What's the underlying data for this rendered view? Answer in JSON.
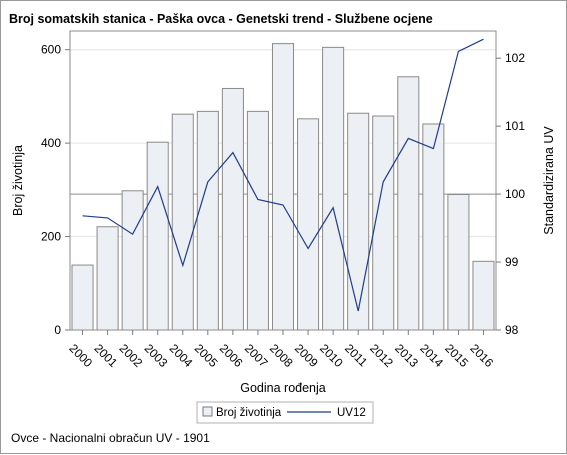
{
  "chart_data": {
    "type": "bar",
    "title": "Broj somatskih stanica - Paška ovca - Genetski trend - Službene ocjene",
    "xlabel": "Godina rođenja",
    "ylabel": "Broj životinja",
    "y2label": "Standardizirana UV",
    "categories": [
      "2000",
      "2001",
      "2002",
      "2003",
      "2004",
      "2005",
      "2006",
      "2007",
      "2008",
      "2009",
      "2010",
      "2011",
      "2012",
      "2013",
      "2014",
      "2015",
      "2016"
    ],
    "ylim": [
      0,
      640
    ],
    "y_ticks": [
      "0",
      "200",
      "400",
      "600"
    ],
    "y2lim": [
      98,
      102.4
    ],
    "y2_ticks": [
      "98",
      "99",
      "100",
      "101",
      "102"
    ],
    "reference_line_y2": 100,
    "grid": true,
    "legend_position": "bottom",
    "series": [
      {
        "name": "Broj životinja",
        "kind": "bar",
        "axis": "left",
        "color": "#eceff3",
        "values": [
          139,
          221,
          298,
          402,
          462,
          468,
          517,
          468,
          613,
          452,
          605,
          464,
          458,
          542,
          441,
          290,
          147
        ]
      },
      {
        "name": "UV12",
        "kind": "line",
        "axis": "right",
        "color": "#1f3d8a",
        "values": [
          99.68,
          99.65,
          99.41,
          100.11,
          98.95,
          100.18,
          100.61,
          99.92,
          99.84,
          99.2,
          99.8,
          98.28,
          100.18,
          100.82,
          100.67,
          102.1,
          102.28
        ]
      }
    ],
    "footnote": "Ovce - Nacionalni obračun UV - 1901"
  }
}
